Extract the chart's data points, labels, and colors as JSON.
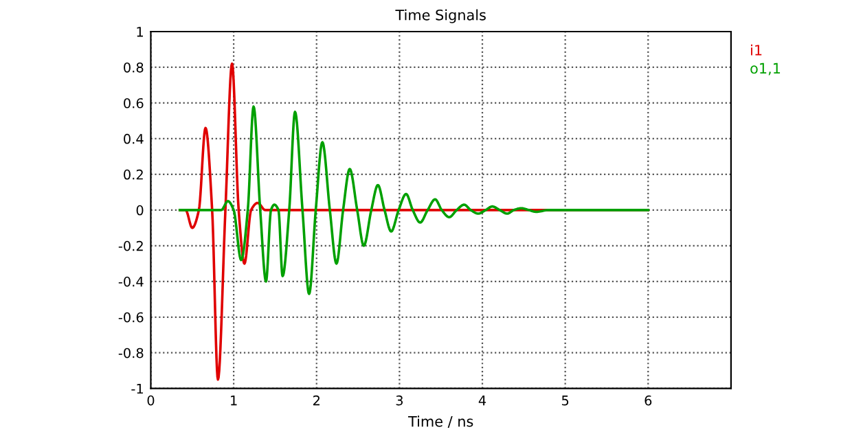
{
  "chart_data": {
    "type": "line",
    "title": "Time Signals",
    "xlabel": "Time / ns",
    "xlim": [
      0,
      7
    ],
    "xticks": [
      0,
      1,
      2,
      3,
      4,
      5,
      6
    ],
    "ylim": [
      -1,
      1
    ],
    "yticks": [
      -1,
      -0.8,
      -0.6,
      -0.4,
      -0.2,
      0,
      0.2,
      0.4,
      0.6,
      0.8,
      1
    ],
    "grid": true,
    "legend": "top right",
    "marker": "none",
    "line_style": "solid",
    "series": [
      {
        "name": "i1",
        "color": "#e00000",
        "x": [
          0.35,
          0.42,
          0.5,
          0.58,
          0.66,
          0.74,
          0.81,
          0.9,
          0.98,
          1.06,
          1.13,
          1.21,
          1.29,
          1.38,
          1.5,
          6.0
        ],
        "values": [
          0,
          0,
          -0.1,
          0,
          0.46,
          0,
          -0.95,
          0,
          0.82,
          0,
          -0.3,
          0,
          0.04,
          0,
          0,
          0
        ]
      },
      {
        "name": "o1,1",
        "color": "#00a000",
        "x": [
          0.35,
          0.85,
          0.93,
          1.0,
          1.09,
          1.17,
          1.24,
          1.32,
          1.39,
          1.45,
          1.49,
          1.54,
          1.59,
          1.67,
          1.74,
          1.83,
          1.91,
          1.99,
          2.07,
          2.16,
          2.24,
          2.32,
          2.4,
          2.49,
          2.57,
          2.66,
          2.74,
          2.82,
          2.9,
          2.99,
          3.08,
          3.16,
          3.25,
          3.34,
          3.43,
          3.51,
          3.6,
          3.69,
          3.78,
          3.86,
          3.95,
          4.04,
          4.12,
          4.21,
          4.3,
          4.38,
          4.47,
          4.56,
          4.65,
          4.8,
          6.0
        ],
        "values": [
          0,
          0,
          0.05,
          0,
          -0.28,
          0,
          0.58,
          0,
          -0.4,
          0,
          0.03,
          0,
          -0.37,
          0,
          0.55,
          0,
          -0.47,
          0,
          0.38,
          0,
          -0.3,
          0,
          0.23,
          0,
          -0.2,
          0,
          0.14,
          0,
          -0.12,
          0,
          0.09,
          0,
          -0.07,
          0,
          0.06,
          0,
          -0.04,
          0,
          0.03,
          0,
          -0.02,
          0,
          0.02,
          0,
          -0.02,
          0,
          0.01,
          0,
          -0.01,
          0,
          0
        ]
      }
    ]
  }
}
